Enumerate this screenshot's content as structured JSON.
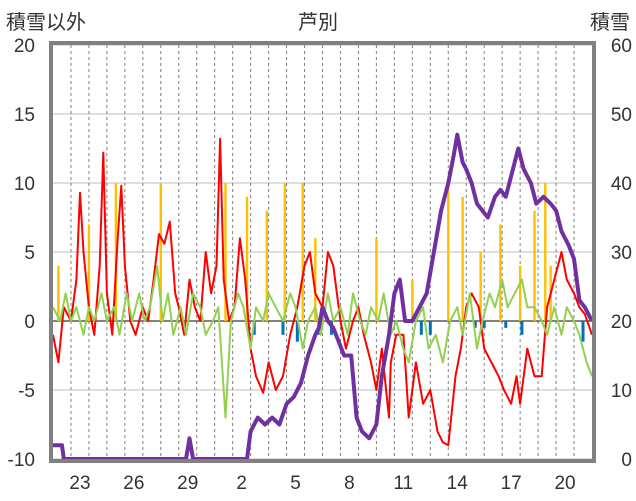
{
  "chart_data": {
    "type": "line",
    "title": "芦別",
    "ylabel_left": "積雪以外",
    "ylabel_right": "積雪",
    "y_left_ticks": [
      "20",
      "15",
      "10",
      "5",
      "0",
      "-5",
      "-10"
    ],
    "y_right_ticks": [
      "60",
      "50",
      "40",
      "30",
      "20",
      "10",
      "0"
    ],
    "ylim_left": [
      -10,
      20
    ],
    "ylim_right": [
      0,
      60
    ],
    "x_tick_labels": [
      "23",
      "26",
      "29",
      "2",
      "5",
      "8",
      "11",
      "14",
      "17",
      "20"
    ],
    "x_day_range": [
      0,
      30
    ],
    "x_tick_days": [
      1.5,
      4.5,
      7.5,
      10.5,
      13.5,
      16.5,
      19.5,
      22.5,
      25.5,
      28.5
    ],
    "grid": {
      "horizontal": true,
      "vertical_dashed": true
    },
    "colors": {
      "temp_max": "#ff0000",
      "temp_min_green": "#92d050",
      "snow_depth": "#7030a0",
      "precip_bars": "#ffc000",
      "snow_change_bars": "#0070c0",
      "frame": "#808080"
    },
    "series": [
      {
        "axis": "left",
        "color": "#ff0000",
        "points": [
          [
            0,
            -1
          ],
          [
            0.3,
            -3
          ],
          [
            0.6,
            1
          ],
          [
            1,
            0
          ],
          [
            1.3,
            3
          ],
          [
            1.5,
            9.3
          ],
          [
            1.7,
            5
          ],
          [
            2,
            1
          ],
          [
            2.3,
            -1
          ],
          [
            2.6,
            4
          ],
          [
            2.8,
            12.2
          ],
          [
            3.0,
            2
          ],
          [
            3.3,
            -1
          ],
          [
            3.6,
            6
          ],
          [
            3.8,
            9.8
          ],
          [
            4.0,
            4
          ],
          [
            4.3,
            0
          ],
          [
            4.6,
            -1
          ],
          [
            5,
            1
          ],
          [
            5.3,
            0
          ],
          [
            5.6,
            3
          ],
          [
            5.9,
            6.3
          ],
          [
            6.2,
            5.6
          ],
          [
            6.5,
            7.2
          ],
          [
            6.8,
            2
          ],
          [
            7,
            1
          ],
          [
            7.3,
            -1
          ],
          [
            7.6,
            3
          ],
          [
            7.9,
            1
          ],
          [
            8.2,
            0
          ],
          [
            8.5,
            5
          ],
          [
            8.8,
            2
          ],
          [
            9.1,
            4
          ],
          [
            9.3,
            13.2
          ],
          [
            9.5,
            3
          ],
          [
            9.8,
            0
          ],
          [
            10.1,
            1
          ],
          [
            10.4,
            6
          ],
          [
            10.7,
            3
          ],
          [
            11,
            -2
          ],
          [
            11.3,
            -4
          ],
          [
            11.7,
            -5.2
          ],
          [
            12.0,
            -3
          ],
          [
            12.4,
            -5
          ],
          [
            12.8,
            -4
          ],
          [
            13.2,
            -1
          ],
          [
            13.6,
            1
          ],
          [
            14,
            4
          ],
          [
            14.3,
            5
          ],
          [
            14.6,
            2
          ],
          [
            15,
            1
          ],
          [
            15.3,
            5
          ],
          [
            15.6,
            4
          ],
          [
            16,
            0
          ],
          [
            16.3,
            -2
          ],
          [
            16.7,
            0
          ],
          [
            17,
            1
          ],
          [
            17.3,
            -1
          ],
          [
            17.7,
            -3
          ],
          [
            18,
            -5
          ],
          [
            18.3,
            -2
          ],
          [
            18.7,
            -7
          ],
          [
            18.8,
            -3
          ],
          [
            19.1,
            -1
          ],
          [
            19.5,
            -1
          ],
          [
            19.8,
            -7
          ],
          [
            20.2,
            -3
          ],
          [
            20.6,
            -6
          ],
          [
            21,
            -5
          ],
          [
            21.4,
            -8
          ],
          [
            21.7,
            -8.8
          ],
          [
            22.0,
            -9
          ],
          [
            22.4,
            -4
          ],
          [
            22.7,
            -2
          ],
          [
            23,
            1
          ],
          [
            23.3,
            2
          ],
          [
            23.7,
            1
          ],
          [
            24,
            -2
          ],
          [
            24.4,
            -3
          ],
          [
            24.8,
            -4
          ],
          [
            25.1,
            -5
          ],
          [
            25.5,
            -6
          ],
          [
            25.8,
            -4
          ],
          [
            26.0,
            -6
          ],
          [
            26.4,
            -2
          ],
          [
            26.8,
            -4
          ],
          [
            27.2,
            -4
          ],
          [
            27.5,
            1
          ],
          [
            27.9,
            3
          ],
          [
            28.3,
            5
          ],
          [
            28.6,
            3
          ],
          [
            29.0,
            2
          ],
          [
            29.3,
            1
          ],
          [
            29.6,
            0.5
          ],
          [
            30,
            -1
          ]
        ]
      },
      {
        "axis": "left",
        "color": "#92d050",
        "points": [
          [
            0,
            1
          ],
          [
            0.4,
            0
          ],
          [
            0.7,
            2
          ],
          [
            1.0,
            0
          ],
          [
            1.3,
            1
          ],
          [
            1.7,
            -1
          ],
          [
            2.0,
            1
          ],
          [
            2.3,
            0
          ],
          [
            2.7,
            2
          ],
          [
            3.0,
            0
          ],
          [
            3.4,
            1
          ],
          [
            3.7,
            -1
          ],
          [
            4.1,
            2
          ],
          [
            4.4,
            0
          ],
          [
            4.8,
            2
          ],
          [
            5.1,
            0
          ],
          [
            5.4,
            1
          ],
          [
            5.8,
            4
          ],
          [
            6.1,
            0
          ],
          [
            6.4,
            2
          ],
          [
            6.7,
            -1
          ],
          [
            7.1,
            1
          ],
          [
            7.4,
            -1
          ],
          [
            7.8,
            2
          ],
          [
            8.2,
            1
          ],
          [
            8.5,
            -1
          ],
          [
            8.9,
            0
          ],
          [
            9.2,
            1
          ],
          [
            9.6,
            -7
          ],
          [
            9.9,
            0
          ],
          [
            10.3,
            2
          ],
          [
            10.6,
            1
          ],
          [
            11.0,
            -2
          ],
          [
            11.3,
            1
          ],
          [
            11.7,
            0
          ],
          [
            12.0,
            2
          ],
          [
            12.4,
            1
          ],
          [
            12.8,
            0
          ],
          [
            13.2,
            2
          ],
          [
            13.5,
            1
          ],
          [
            13.9,
            -2
          ],
          [
            14.2,
            0
          ],
          [
            14.6,
            1
          ],
          [
            14.9,
            -1
          ],
          [
            15.3,
            2
          ],
          [
            15.6,
            0
          ],
          [
            16.0,
            1
          ],
          [
            16.4,
            -1
          ],
          [
            16.7,
            2
          ],
          [
            17.1,
            0
          ],
          [
            17.4,
            -1
          ],
          [
            17.7,
            1
          ],
          [
            18.1,
            0
          ],
          [
            18.4,
            2
          ],
          [
            18.8,
            -1
          ],
          [
            19.1,
            0
          ],
          [
            19.5,
            -2
          ],
          [
            19.8,
            -3
          ],
          [
            20.2,
            0
          ],
          [
            20.6,
            1
          ],
          [
            20.9,
            -2
          ],
          [
            21.3,
            -1
          ],
          [
            21.7,
            -3
          ],
          [
            22.1,
            0
          ],
          [
            22.5,
            1
          ],
          [
            22.8,
            -1
          ],
          [
            23.2,
            2
          ],
          [
            23.6,
            -2
          ],
          [
            23.9,
            0
          ],
          [
            24.3,
            2
          ],
          [
            24.6,
            1
          ],
          [
            25.0,
            3
          ],
          [
            25.3,
            1
          ],
          [
            25.7,
            2
          ],
          [
            26.1,
            3
          ],
          [
            26.4,
            1
          ],
          [
            26.8,
            1
          ],
          [
            27.2,
            0
          ],
          [
            27.5,
            -1
          ],
          [
            27.9,
            1
          ],
          [
            28.3,
            -1
          ],
          [
            28.6,
            1
          ],
          [
            29.0,
            0
          ],
          [
            29.3,
            -1
          ],
          [
            29.7,
            -3
          ],
          [
            30.0,
            -4
          ]
        ]
      },
      {
        "axis": "right",
        "color": "#7030a0",
        "points": [
          [
            0,
            2
          ],
          [
            0.5,
            2
          ],
          [
            0.6,
            0
          ],
          [
            7.0,
            0
          ],
          [
            7.4,
            0
          ],
          [
            7.6,
            3
          ],
          [
            7.8,
            0
          ],
          [
            10.8,
            0
          ],
          [
            11.0,
            4
          ],
          [
            11.4,
            6
          ],
          [
            11.8,
            5
          ],
          [
            12.2,
            6
          ],
          [
            12.6,
            5
          ],
          [
            13.0,
            8
          ],
          [
            13.4,
            9
          ],
          [
            13.8,
            11
          ],
          [
            14.2,
            15
          ],
          [
            14.6,
            18
          ],
          [
            14.8,
            19
          ],
          [
            15.0,
            22
          ],
          [
            15.3,
            20
          ],
          [
            15.6,
            19
          ],
          [
            15.9,
            17
          ],
          [
            16.2,
            15
          ],
          [
            16.6,
            15
          ],
          [
            16.9,
            6
          ],
          [
            17.2,
            4
          ],
          [
            17.6,
            3
          ],
          [
            18.0,
            5
          ],
          [
            18.3,
            12
          ],
          [
            18.7,
            18
          ],
          [
            19.0,
            24
          ],
          [
            19.3,
            26
          ],
          [
            19.6,
            20
          ],
          [
            20.0,
            20
          ],
          [
            20.4,
            22
          ],
          [
            20.8,
            24
          ],
          [
            21.2,
            30
          ],
          [
            21.6,
            36
          ],
          [
            22.0,
            40
          ],
          [
            22.3,
            44
          ],
          [
            22.5,
            47
          ],
          [
            22.8,
            43
          ],
          [
            23.0,
            42
          ],
          [
            23.3,
            40
          ],
          [
            23.6,
            37
          ],
          [
            23.9,
            36
          ],
          [
            24.2,
            35
          ],
          [
            24.6,
            38
          ],
          [
            24.9,
            39
          ],
          [
            25.2,
            38
          ],
          [
            25.6,
            42
          ],
          [
            25.9,
            45
          ],
          [
            26.2,
            42
          ],
          [
            26.6,
            40
          ],
          [
            26.9,
            37
          ],
          [
            27.3,
            38
          ],
          [
            27.7,
            37
          ],
          [
            28.0,
            36
          ],
          [
            28.3,
            33
          ],
          [
            28.7,
            31
          ],
          [
            29.0,
            29
          ],
          [
            29.3,
            23
          ],
          [
            29.6,
            22
          ],
          [
            30.0,
            20
          ]
        ]
      }
    ],
    "precip_bars": [
      [
        0.3,
        4
      ],
      [
        2.0,
        7
      ],
      [
        3.5,
        10
      ],
      [
        6.0,
        10
      ],
      [
        9.6,
        10
      ],
      [
        10.8,
        9
      ],
      [
        11.9,
        8
      ],
      [
        12.9,
        10
      ],
      [
        13.9,
        10
      ],
      [
        14.6,
        6
      ],
      [
        18.0,
        6
      ],
      [
        20.0,
        3
      ],
      [
        22.0,
        10
      ],
      [
        22.8,
        9
      ],
      [
        23.8,
        5
      ],
      [
        24.9,
        7
      ],
      [
        26.0,
        4
      ],
      [
        26.8,
        8
      ],
      [
        27.4,
        10
      ],
      [
        27.7,
        4
      ]
    ],
    "snow_change_bars": [
      [
        11.2,
        -1
      ],
      [
        12.8,
        -1
      ],
      [
        13.6,
        -1.5
      ],
      [
        14.8,
        -1
      ],
      [
        15.5,
        -1
      ],
      [
        20.5,
        -1
      ],
      [
        21.0,
        -1
      ],
      [
        23.5,
        -0.5
      ],
      [
        24.0,
        -0.5
      ],
      [
        25.2,
        -0.5
      ],
      [
        26.1,
        -1
      ],
      [
        29.5,
        -1.5
      ]
    ]
  }
}
